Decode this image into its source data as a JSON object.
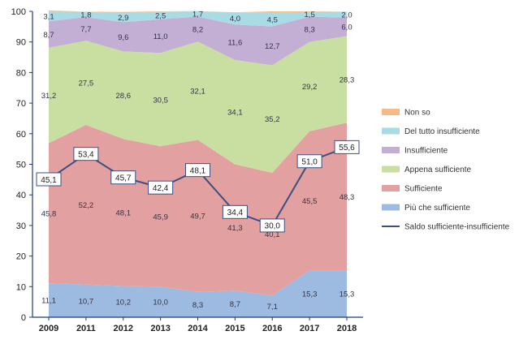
{
  "chart_data": {
    "type": "area",
    "title": "",
    "xlabel": "",
    "ylabel": "",
    "ylim": [
      0,
      100
    ],
    "yticks": [
      0,
      10,
      20,
      30,
      40,
      50,
      60,
      70,
      80,
      90,
      100
    ],
    "categories": [
      "2009",
      "2011",
      "2012",
      "2013",
      "2014",
      "2015",
      "2016",
      "2017",
      "2018"
    ],
    "legend_position": "right",
    "grid": false,
    "stack_order": [
      "Più che sufficiente",
      "Sufficiente",
      "Appena sufficiente",
      "Insufficiente",
      "Del tutto insufficiente",
      "Non so"
    ],
    "series": [
      {
        "name": "Non so",
        "color": "#f6b98a",
        "values": [
          0.4,
          0.0,
          0.4,
          0.1,
          0.1,
          0.0,
          0.4,
          0.2,
          0.0
        ],
        "labels": [
          "",
          "",
          "",
          "",
          "",
          "",
          "",
          "",
          ""
        ]
      },
      {
        "name": "Del tutto insufficiente",
        "color": "#a9dbe4",
        "values": [
          3.1,
          1.8,
          2.9,
          2.5,
          1.7,
          4.0,
          4.5,
          1.5,
          2.0
        ],
        "labels": [
          "3,1",
          "1,8",
          "2,9",
          "2,5",
          "1,7",
          "4,0",
          "4,5",
          "1,5",
          "2,0"
        ]
      },
      {
        "name": "Insufficiente",
        "color": "#c4afd4",
        "values": [
          8.7,
          7.7,
          9.6,
          11.0,
          8.2,
          11.6,
          12.7,
          8.3,
          6.0
        ],
        "labels": [
          "8,7",
          "7,7",
          "9,6",
          "11,0",
          "8,2",
          "11,6",
          "12,7",
          "8,3",
          "6,0"
        ]
      },
      {
        "name": "Appena sufficiente",
        "color": "#c9dfa2",
        "values": [
          31.2,
          27.5,
          28.6,
          30.5,
          32.1,
          34.1,
          35.2,
          29.2,
          28.3
        ],
        "labels": [
          "31,2",
          "27,5",
          "28,6",
          "30,5",
          "32,1",
          "34,1",
          "35,2",
          "29,2",
          "28,3"
        ]
      },
      {
        "name": "Sufficiente",
        "color": "#e3a0a0",
        "values": [
          45.8,
          52.2,
          48.1,
          45.9,
          49.7,
          41.3,
          40.1,
          45.5,
          48.3
        ],
        "labels": [
          "45,8",
          "52,2",
          "48,1",
          "45,9",
          "49,7",
          "41,3",
          "40,1",
          "45,5",
          "48,3"
        ]
      },
      {
        "name": "Più che sufficiente",
        "color": "#9dbbe0",
        "values": [
          11.1,
          10.7,
          10.2,
          10.0,
          8.3,
          8.7,
          7.1,
          15.3,
          15.3
        ],
        "labels": [
          "11,1",
          "10,7",
          "10,2",
          "10,0",
          "8,3",
          "8,7",
          "7,1",
          "15,3",
          "15,3"
        ]
      }
    ],
    "line_series": {
      "name": "Saldo sufficiente-insufficiente",
      "color": "#3d4f80",
      "values": [
        45.1,
        53.4,
        45.7,
        42.4,
        48.1,
        34.4,
        30.0,
        51.0,
        55.6
      ],
      "labels": [
        "45,1",
        "53,4",
        "45,7",
        "42,4",
        "48,1",
        "34,4",
        "30,0",
        "51,0",
        "55,6"
      ]
    }
  }
}
